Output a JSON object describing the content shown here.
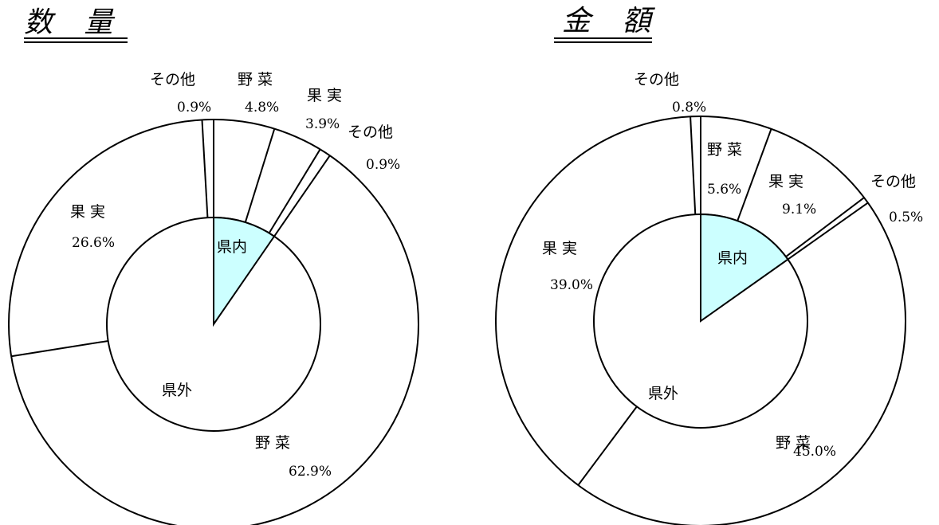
{
  "chart_data": [
    {
      "type": "pie",
      "title": "数 量",
      "inner": {
        "label_in": "県内",
        "label_out": "県外",
        "in_share": 9.6,
        "in_color": "#ccffff"
      },
      "outer": [
        {
          "group": "県内",
          "label": "野 菜",
          "value": 4.8,
          "value_label": "4.8%"
        },
        {
          "group": "県内",
          "label": "果 実",
          "value": 3.9,
          "value_label": "3.9%"
        },
        {
          "group": "県内",
          "label": "その他",
          "value": 0.9,
          "value_label": "0.9%"
        },
        {
          "group": "県外",
          "label": "野 菜",
          "value": 62.9,
          "value_label": "62.9%"
        },
        {
          "group": "県外",
          "label": "果 実",
          "value": 26.6,
          "value_label": "26.6%"
        },
        {
          "group": "県外",
          "label": "その他",
          "value": 0.9,
          "value_label": "0.9%"
        }
      ]
    },
    {
      "type": "pie",
      "title": "金 額",
      "inner": {
        "label_in": "県内",
        "label_out": "県外",
        "in_share": 15.2,
        "in_color": "#ccffff"
      },
      "outer": [
        {
          "group": "県内",
          "label": "野 菜",
          "value": 5.6,
          "value_label": "5.6%"
        },
        {
          "group": "県内",
          "label": "果 実",
          "value": 9.1,
          "value_label": "9.1%"
        },
        {
          "group": "県内",
          "label": "その他",
          "value": 0.5,
          "value_label": "0.5%"
        },
        {
          "group": "県外",
          "label": "野 菜",
          "value": 45.0,
          "value_label": "45.0%"
        },
        {
          "group": "県外",
          "label": "果 実",
          "value": 39.0,
          "value_label": "39.0%"
        },
        {
          "group": "県外",
          "label": "その他",
          "value": 0.8,
          "value_label": "0.8%"
        }
      ]
    }
  ]
}
